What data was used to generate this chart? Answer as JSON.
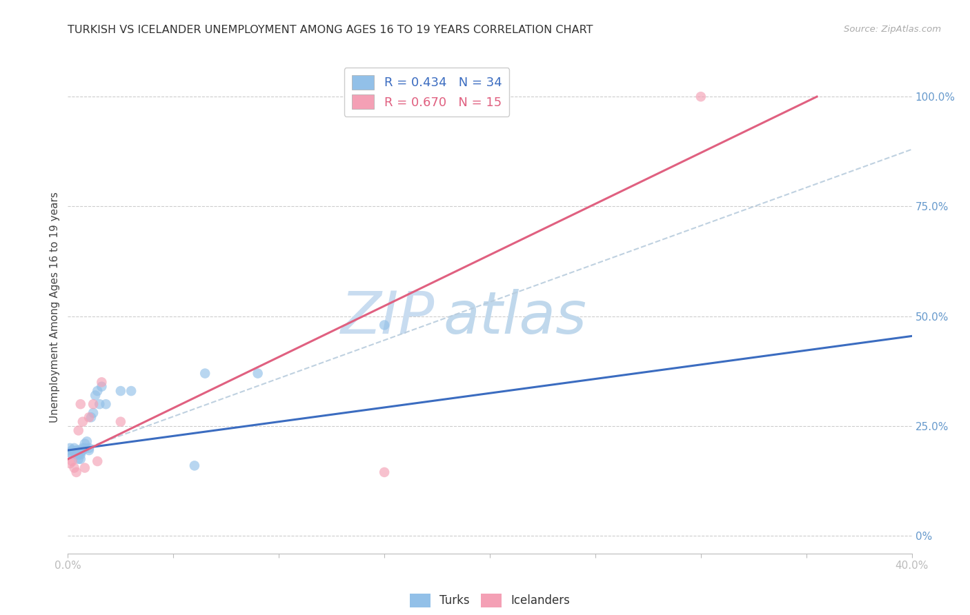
{
  "title": "TURKISH VS ICELANDER UNEMPLOYMENT AMONG AGES 16 TO 19 YEARS CORRELATION CHART",
  "source": "Source: ZipAtlas.com",
  "ylabel": "Unemployment Among Ages 16 to 19 years",
  "xlim": [
    0.0,
    0.4
  ],
  "ylim": [
    -0.04,
    1.08
  ],
  "xticks": [
    0.0,
    0.05,
    0.1,
    0.15,
    0.2,
    0.25,
    0.3,
    0.35,
    0.4
  ],
  "xtick_labels": [
    "0.0%",
    "",
    "",
    "",
    "",
    "",
    "",
    "",
    "40.0%"
  ],
  "ytick_labels_right": [
    "0%",
    "25.0%",
    "50.0%",
    "75.0%",
    "100.0%"
  ],
  "yticks_right": [
    0.0,
    0.25,
    0.5,
    0.75,
    1.0
  ],
  "turks_R": "0.434",
  "turks_N": "34",
  "icelanders_R": "0.670",
  "icelanders_N": "15",
  "turks_color": "#92C0E8",
  "icelanders_color": "#F4A0B5",
  "turks_line_color": "#3B6CC0",
  "icelanders_line_color": "#E06080",
  "dashed_line_color": "#B8CCDD",
  "watermark_color_zip": "#C8DCF0",
  "watermark_color_atlas": "#C0D8EC",
  "background_color": "#FFFFFF",
  "grid_color": "#CCCCCC",
  "title_color": "#333333",
  "axis_label_color": "#444444",
  "right_tick_color": "#6699CC",
  "turks_x": [
    0.001,
    0.001,
    0.002,
    0.002,
    0.003,
    0.003,
    0.004,
    0.004,
    0.005,
    0.005,
    0.005,
    0.006,
    0.006,
    0.006,
    0.007,
    0.007,
    0.008,
    0.008,
    0.009,
    0.01,
    0.01,
    0.011,
    0.012,
    0.013,
    0.014,
    0.015,
    0.016,
    0.018,
    0.025,
    0.03,
    0.06,
    0.065,
    0.09,
    0.15
  ],
  "turks_y": [
    0.2,
    0.19,
    0.195,
    0.185,
    0.2,
    0.19,
    0.195,
    0.185,
    0.195,
    0.185,
    0.175,
    0.19,
    0.185,
    0.175,
    0.2,
    0.195,
    0.21,
    0.2,
    0.215,
    0.2,
    0.195,
    0.27,
    0.28,
    0.32,
    0.33,
    0.3,
    0.34,
    0.3,
    0.33,
    0.33,
    0.16,
    0.37,
    0.37,
    0.48
  ],
  "icelanders_x": [
    0.001,
    0.002,
    0.003,
    0.004,
    0.005,
    0.006,
    0.007,
    0.008,
    0.01,
    0.012,
    0.014,
    0.016,
    0.025,
    0.15,
    0.3
  ],
  "icelanders_y": [
    0.165,
    0.17,
    0.155,
    0.145,
    0.24,
    0.3,
    0.26,
    0.155,
    0.27,
    0.3,
    0.17,
    0.35,
    0.26,
    0.145,
    1.0
  ],
  "turks_trendline_x": [
    0.0,
    0.4
  ],
  "turks_trendline_y": [
    0.195,
    0.455
  ],
  "icelanders_trendline_x": [
    0.0,
    0.355
  ],
  "icelanders_trendline_y": [
    0.175,
    1.0
  ],
  "dashed_line_x": [
    0.0,
    0.4
  ],
  "dashed_line_y": [
    0.185,
    0.88
  ]
}
